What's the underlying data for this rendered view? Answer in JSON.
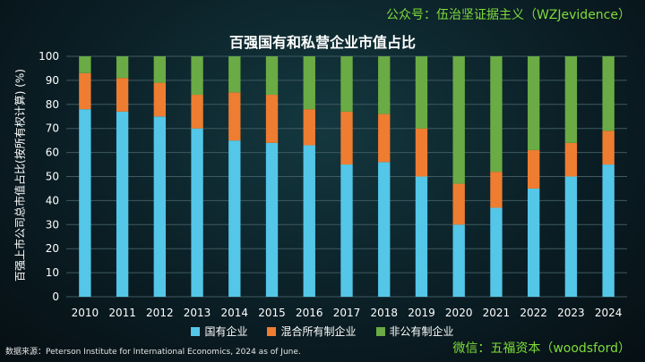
{
  "header": {
    "account": "公众号：伍治坚证据主义（WZJevidence）"
  },
  "footer": {
    "source": "数据来源：Peterson Institute for International Economics, 2024 as of June.",
    "wechat": "微信：五福资本（woodsford）"
  },
  "colors": {
    "state": "#54c6e8",
    "mixed": "#ee7d31",
    "private": "#6aab45"
  },
  "chart_data": {
    "type": "bar",
    "stacked": true,
    "title": "百强国有和私营企业市值占比",
    "ylabel": "百强上市公司总市值占比(按所有权计算) (%)",
    "xlabel": "",
    "ylim": [
      0,
      100
    ],
    "yticks": [
      0,
      10,
      20,
      30,
      40,
      50,
      60,
      70,
      80,
      90,
      100
    ],
    "grid": true,
    "legend_position": "bottom",
    "categories": [
      "2010",
      "2011",
      "2012",
      "2013",
      "2014",
      "2015",
      "2016",
      "2017",
      "2018",
      "2019",
      "2020",
      "2021",
      "2022",
      "2023",
      "2024"
    ],
    "series": [
      {
        "name": "国有企业",
        "color": "#54c6e8",
        "values": [
          78,
          77,
          75,
          70,
          65,
          64,
          63,
          55,
          56,
          50,
          30,
          37,
          45,
          50,
          55
        ]
      },
      {
        "name": "混合所有制企业",
        "color": "#ee7d31",
        "values": [
          15,
          14,
          14,
          14,
          20,
          20,
          15,
          22,
          20,
          20,
          17,
          15,
          16,
          14,
          14
        ]
      },
      {
        "name": "非公有制企业",
        "color": "#6aab45",
        "values": [
          7,
          9,
          11,
          16,
          15,
          16,
          22,
          23,
          24,
          30,
          53,
          48,
          39,
          36,
          31
        ]
      }
    ]
  }
}
